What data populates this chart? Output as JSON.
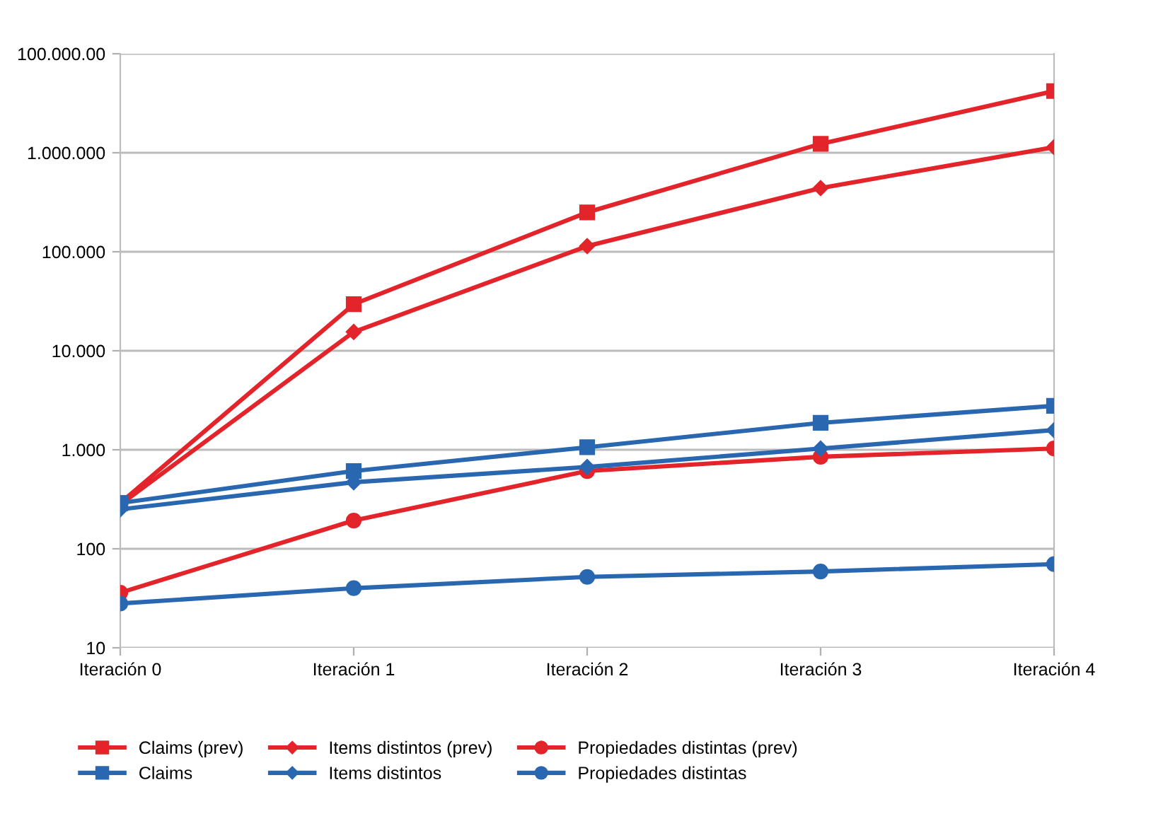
{
  "chart_data": {
    "type": "line",
    "categories": [
      "Iteración 0",
      "Iteración 1",
      "Iteración 2",
      "Iteración 3",
      "Iteración 4"
    ],
    "log": "y",
    "ylim": [
      10,
      10000000
    ],
    "yticks": [
      10,
      100,
      {
        "value": 1000,
        "label": "1.000"
      },
      {
        "value": 10000,
        "label": "10.000"
      },
      {
        "value": 100000,
        "label": "100.000"
      },
      {
        "value": 1000000,
        "label": "1.000.000"
      },
      {
        "value": 10000000,
        "label": "100.000.00"
      }
    ],
    "grid": "y",
    "legend": "bottom",
    "line_style": "solid",
    "series": [
      {
        "name": "Claims (prev)",
        "color": "#e3242b",
        "marker": "square",
        "values": [
          290,
          29500,
          250000,
          1230000,
          4200000
        ]
      },
      {
        "name": "Items distintos (prev)",
        "color": "#e3242b",
        "marker": "diamond",
        "values": [
          280,
          15500,
          114000,
          440000,
          1140000
        ]
      },
      {
        "name": "Propiedades distintas (prev)",
        "color": "#e3242b",
        "marker": "circle",
        "values": [
          36,
          193,
          610,
          850,
          1030
        ]
      },
      {
        "name": "Claims",
        "color": "#2a67b1",
        "marker": "square",
        "values": [
          290,
          610,
          1060,
          1870,
          2780
        ]
      },
      {
        "name": "Items distintos",
        "color": "#2a67b1",
        "marker": "diamond",
        "values": [
          250,
          470,
          670,
          1030,
          1580
        ]
      },
      {
        "name": "Propiedades distintas",
        "color": "#2a67b1",
        "marker": "circle",
        "values": [
          28,
          40,
          52,
          59,
          70
        ]
      }
    ]
  }
}
